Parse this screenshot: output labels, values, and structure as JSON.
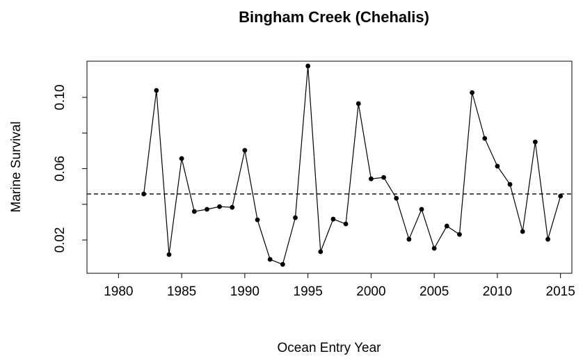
{
  "chart_data": {
    "type": "line",
    "title": "Bingham Creek (Chehalis)",
    "x_label": "Ocean Entry Year",
    "y_label": "Marine Survival",
    "x": [
      1982,
      1983,
      1984,
      1985,
      1986,
      1987,
      1988,
      1989,
      1990,
      1991,
      1992,
      1993,
      1994,
      1995,
      1996,
      1997,
      1998,
      1999,
      2000,
      2001,
      2002,
      2003,
      2004,
      2005,
      2006,
      2007,
      2008,
      2009,
      2010,
      2011,
      2012,
      2013,
      2014,
      2015
    ],
    "series": [
      {
        "name": "Marine Survival",
        "color": "#000000",
        "values": [
          0.0458,
          0.1039,
          0.0118,
          0.0657,
          0.036,
          0.0372,
          0.0387,
          0.0383,
          0.0703,
          0.0313,
          0.0091,
          0.0063,
          0.0325,
          0.1176,
          0.0134,
          0.0317,
          0.029,
          0.0965,
          0.0543,
          0.0551,
          0.0434,
          0.0204,
          0.0372,
          0.0153,
          0.0278,
          0.0231,
          0.1027,
          0.077,
          0.0614,
          0.0512,
          0.0247,
          0.075,
          0.0204,
          0.0446
        ]
      }
    ],
    "reference_line": 0.0458,
    "xlim": [
      1977.5,
      2015.9
    ],
    "xticks": [
      1980,
      1985,
      1990,
      1995,
      2000,
      2005,
      2010,
      2015
    ],
    "ylim": [
      0.0013,
      0.1203
    ],
    "yticks": [
      0.02,
      0.06,
      {
        "value": 0.1,
        "label": "0.10"
      }
    ],
    "yticks_unlabeled": [
      0.04,
      0.08
    ]
  }
}
